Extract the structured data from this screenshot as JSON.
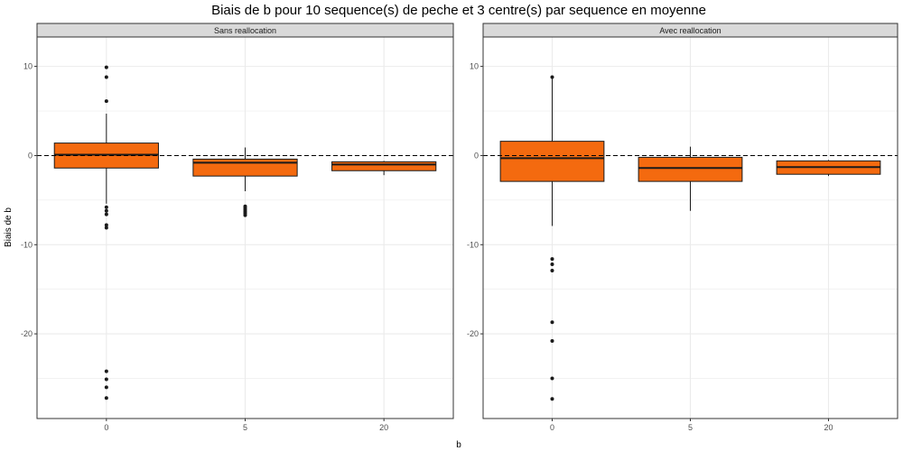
{
  "chart_data": {
    "type": "boxplot",
    "title": "Biais de b pour 10 sequence(s) de peche et 3 centre(s) par sequence en moyenne",
    "xlabel": "b",
    "ylabel": "Biais de b",
    "categories": [
      "0",
      "5",
      "20"
    ],
    "yticks": [
      10,
      0,
      -10,
      -20
    ],
    "ylim": [
      -29.5,
      13.3
    ],
    "reference_line": 0,
    "colors": {
      "box_fill": "#f46a0f",
      "box_stroke": "#1a1a1a",
      "strip_fill": "#d9d9d9",
      "panel_border": "#333333",
      "grid": "#ebebeb",
      "ref_line": "#000000"
    },
    "panels": [
      {
        "name": "Sans reallocation",
        "boxes": [
          {
            "category": "0",
            "q1": -1.4,
            "median": 0.1,
            "q3": 1.4,
            "whisker_low": -5.4,
            "whisker_high": 4.7,
            "outliers": [
              9.9,
              8.8,
              6.1,
              -5.8,
              -6.2,
              -6.6,
              -7.8,
              -8.1,
              -24.2,
              -25.1,
              -26.0,
              -27.2
            ]
          },
          {
            "category": "5",
            "q1": -2.3,
            "median": -0.8,
            "q3": -0.4,
            "whisker_low": -4.0,
            "whisker_high": 0.9,
            "outliers": [
              -5.7,
              -5.9,
              -6.1,
              -6.3,
              -6.5,
              -6.7
            ]
          },
          {
            "category": "20",
            "q1": -1.7,
            "median": -1.0,
            "q3": -0.7,
            "whisker_low": -2.2,
            "whisker_high": -0.6,
            "outliers": []
          }
        ]
      },
      {
        "name": "Avec reallocation",
        "boxes": [
          {
            "category": "0",
            "q1": -2.9,
            "median": -0.3,
            "q3": 1.6,
            "whisker_low": -7.9,
            "whisker_high": 8.7,
            "outliers": [
              8.8,
              -11.6,
              -12.2,
              -12.9,
              -18.7,
              -20.8,
              -25.0,
              -27.3
            ]
          },
          {
            "category": "5",
            "q1": -2.9,
            "median": -1.4,
            "q3": -0.2,
            "whisker_low": -6.2,
            "whisker_high": 1.0,
            "outliers": []
          },
          {
            "category": "20",
            "q1": -2.1,
            "median": -1.3,
            "q3": -0.6,
            "whisker_low": -2.3,
            "whisker_high": -0.5,
            "outliers": []
          }
        ]
      }
    ]
  }
}
